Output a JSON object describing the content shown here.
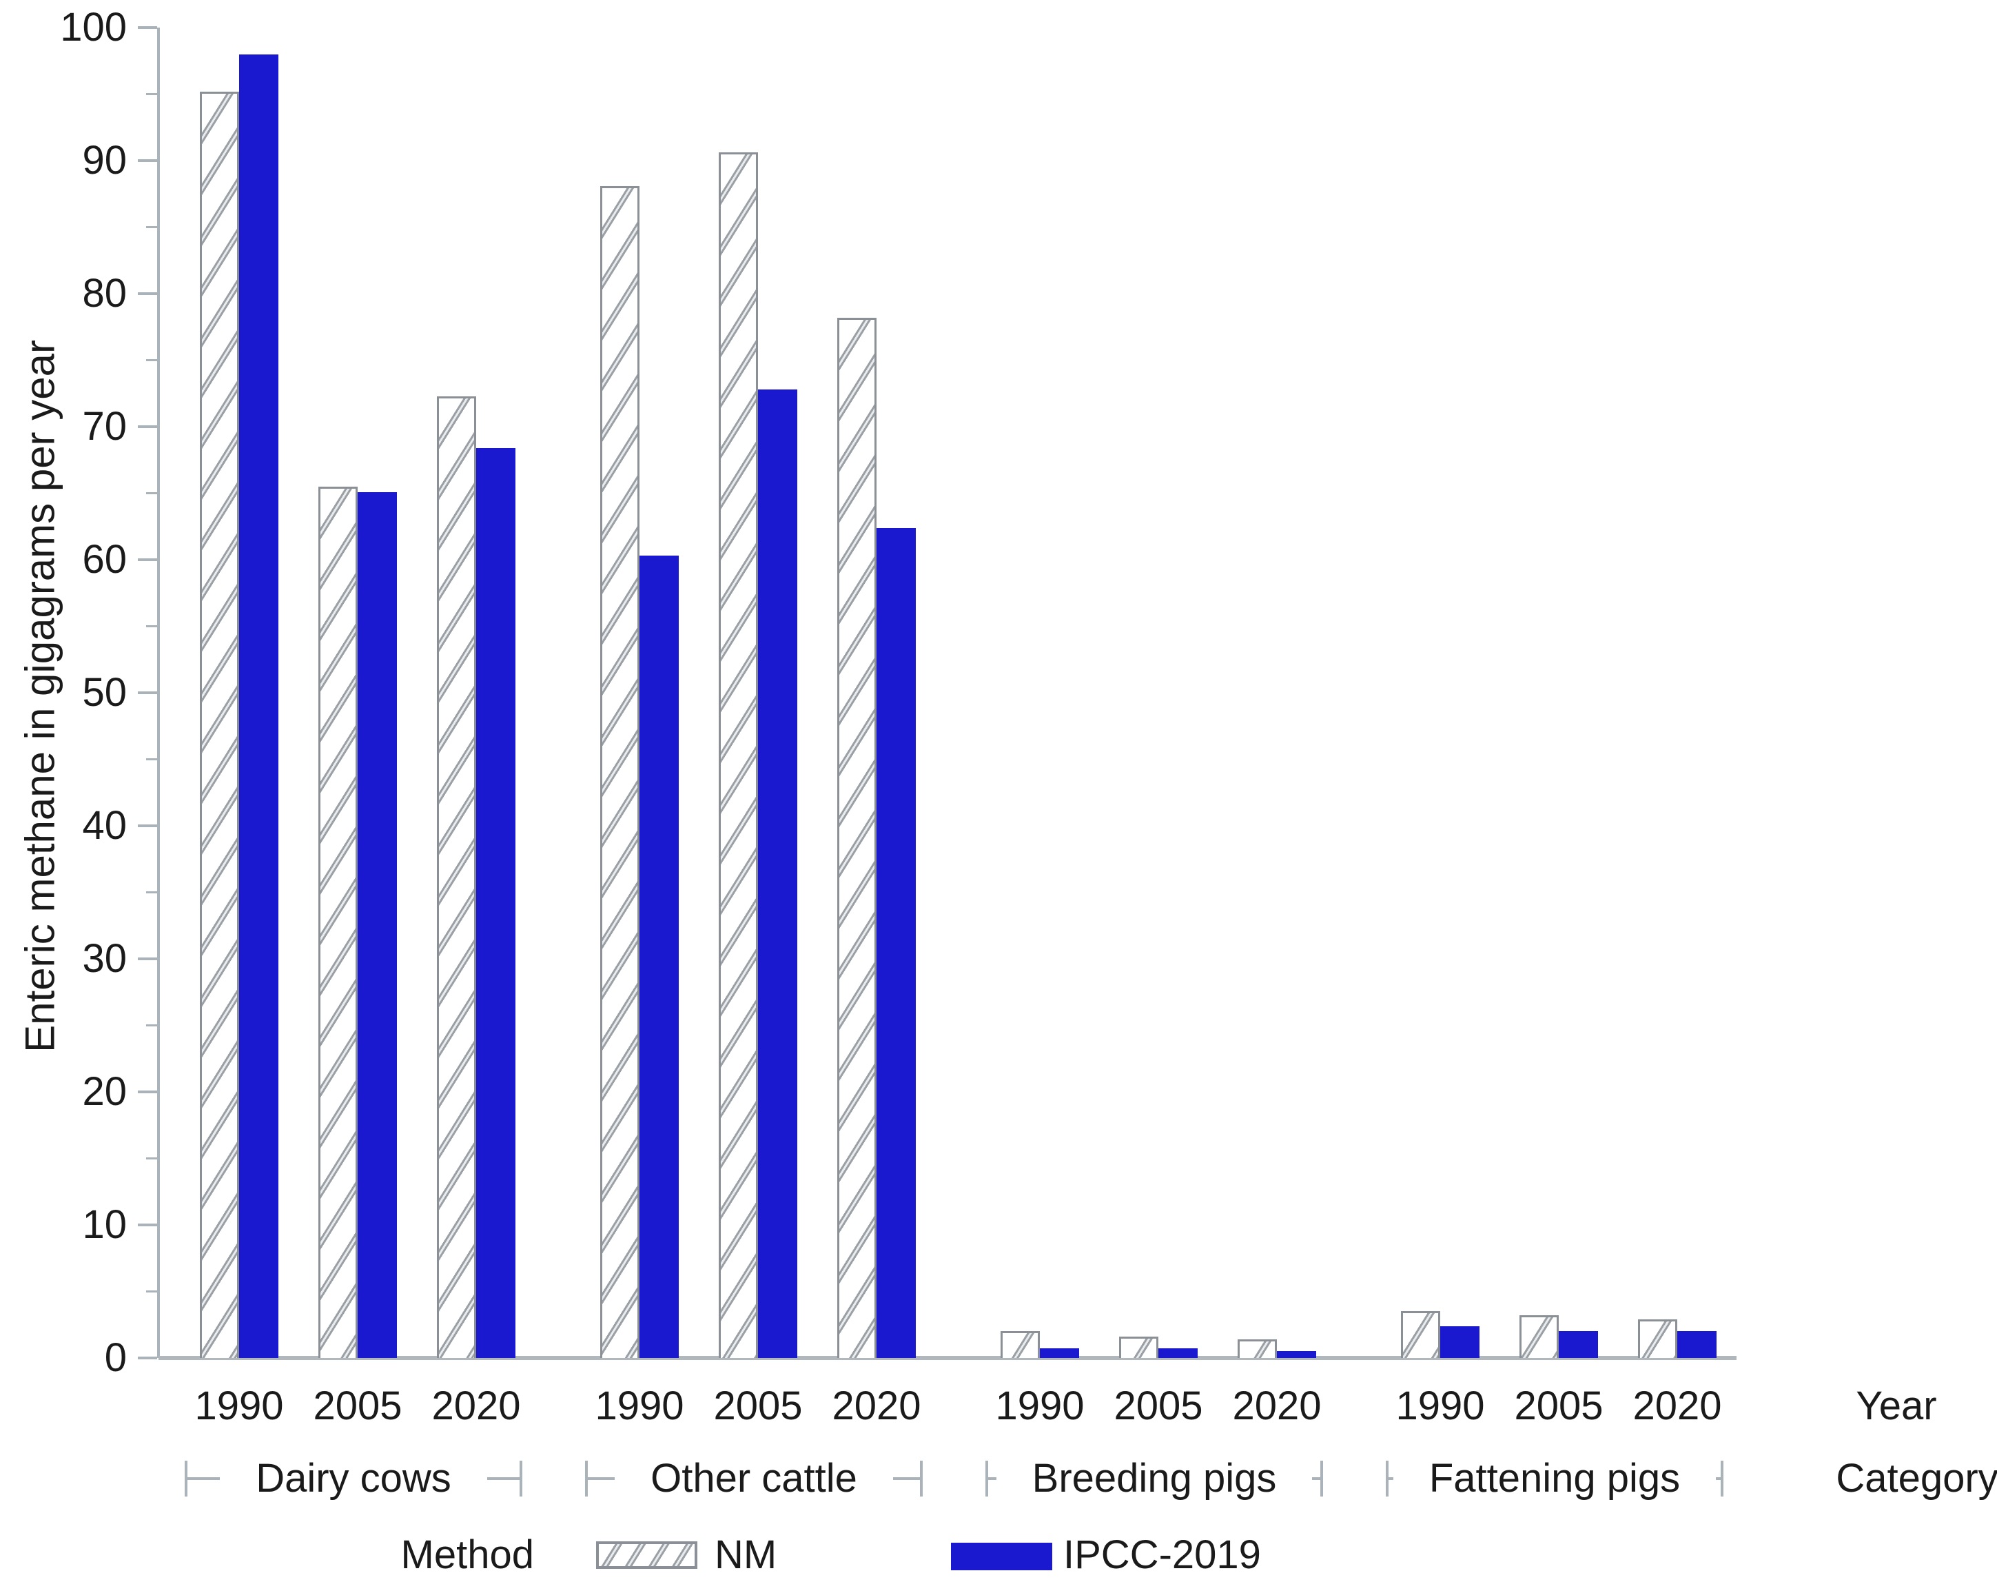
{
  "chart_data": {
    "type": "bar",
    "title": "",
    "ylabel": "Enteric methane in gigagrams per year",
    "xlabel": "Year",
    "group_axis_label": "Category",
    "legend_title": "Method",
    "ylim": [
      0,
      100
    ],
    "ytick_major_step": 10,
    "ytick_minor_step": 5,
    "yticks": [
      "0",
      "10",
      "20",
      "30",
      "40",
      "50",
      "60",
      "70",
      "80",
      "90",
      "100"
    ],
    "years": [
      "1990",
      "2005",
      "2020"
    ],
    "series": [
      {
        "name": "NM",
        "style": "hatched-white"
      },
      {
        "name": "IPCC-2019",
        "style": "solid-blue"
      }
    ],
    "groups": [
      {
        "category": "Dairy cows",
        "NM": [
          95.2,
          65.5,
          72.3
        ],
        "IPCC-2019": [
          98.0,
          65.1,
          68.4
        ]
      },
      {
        "category": "Other cattle",
        "NM": [
          88.1,
          90.6,
          78.2
        ],
        "IPCC-2019": [
          60.3,
          72.8,
          62.4
        ]
      },
      {
        "category": "Breeding pigs",
        "NM": [
          2.0,
          1.6,
          1.4
        ],
        "IPCC-2019": [
          0.7,
          0.7,
          0.5
        ]
      },
      {
        "category": "Fattening pigs",
        "NM": [
          3.5,
          3.2,
          2.9
        ],
        "IPCC-2019": [
          2.4,
          2.0,
          2.0
        ]
      }
    ],
    "legend_position": "bottom",
    "grid": "off",
    "colors": {
      "ipcc_bar_blue": "#1b19d0",
      "hatch_line_gray": "#9aa0a6",
      "bar_outline_gray": "#8a9095",
      "axis_gray": "#aab3ba",
      "text": "#1a1a1a"
    }
  }
}
